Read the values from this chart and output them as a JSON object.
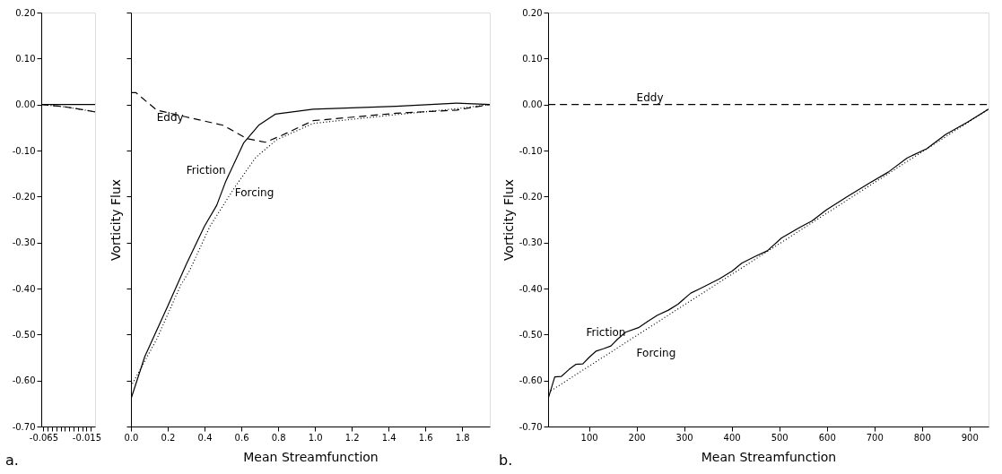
{
  "chart_data": [
    {
      "type": "line",
      "xlim": [
        -0.0675,
        -0.005
      ],
      "ylim": [
        -0.7,
        0.2
      ],
      "xticks": [
        {
          "value": -0.065,
          "label": "-0.065"
        },
        {
          "value": -0.06,
          "label": null
        },
        {
          "value": -0.055,
          "label": null
        },
        {
          "value": -0.05,
          "label": null
        },
        {
          "value": -0.045,
          "label": null
        },
        {
          "value": -0.04,
          "label": null
        },
        {
          "value": -0.035,
          "label": null
        },
        {
          "value": -0.03,
          "label": null
        },
        {
          "value": -0.025,
          "label": null
        },
        {
          "value": -0.02,
          "label": null
        },
        {
          "value": -0.015,
          "label": "-0.015"
        },
        {
          "value": -0.01,
          "label": null
        }
      ],
      "yticks": [
        {
          "value": 0.2,
          "label": "0.20"
        },
        {
          "value": 0.1,
          "label": "0.10"
        },
        {
          "value": 0,
          "label": "0.00"
        },
        {
          "value": -0.1,
          "label": "-0.10"
        },
        {
          "value": -0.2,
          "label": "-0.20"
        },
        {
          "value": -0.3,
          "label": "-0.30"
        },
        {
          "value": -0.4,
          "label": "-0.40"
        },
        {
          "value": -0.5,
          "label": "-0.50"
        },
        {
          "value": -0.6,
          "label": "-0.60"
        },
        {
          "value": -0.7,
          "label": "-0.70"
        }
      ],
      "grid": false,
      "annotations": [
        "a."
      ],
      "series": [
        {
          "color": "#000000",
          "line_style": "solid",
          "x": [
            -0.0675,
            -0.005
          ],
          "values": [
            0,
            0
          ]
        },
        {
          "color": "#000000",
          "line_style": "dotted",
          "x": [
            -0.0675,
            -0.04,
            -0.02,
            -0.005
          ],
          "values": [
            0,
            -0.005,
            -0.011,
            -0.016
          ]
        },
        {
          "color": "#000000",
          "line_style": "dashed",
          "x": [
            -0.0675,
            -0.04,
            -0.02,
            -0.005
          ],
          "values": [
            0,
            -0.005,
            -0.011,
            -0.016
          ]
        }
      ]
    },
    {
      "type": "line",
      "xlim": [
        0,
        1.95
      ],
      "ylim": [
        -0.7,
        0.2
      ],
      "ylabel": "Vorticity Flux",
      "xlabel": "Mean Streamfunction",
      "tick_labels": "x",
      "xticks": [
        {
          "value": 0,
          "label": "0.0"
        },
        {
          "value": 0.2,
          "label": "0.2"
        },
        {
          "value": 0.4,
          "label": "0.4"
        },
        {
          "value": 0.6,
          "label": "0.6"
        },
        {
          "value": 0.8,
          "label": "0.8"
        },
        {
          "value": 1,
          "label": "1.0"
        },
        {
          "value": 1.2,
          "label": "1.2"
        },
        {
          "value": 1.4,
          "label": "1.4"
        },
        {
          "value": 1.6,
          "label": "1.6"
        },
        {
          "value": 1.8,
          "label": "1.8"
        }
      ],
      "yticks": [
        0.2,
        0.1,
        0,
        -0.1,
        -0.2,
        -0.3,
        -0.4,
        -0.5,
        -0.6,
        -0.7
      ],
      "grid": false,
      "annotations": [
        {
          "text": "Eddy",
          "x": 0.14,
          "y": -0.012
        },
        {
          "text": "Friction",
          "x": 0.515,
          "y": -0.167
        },
        {
          "text": "Forcing",
          "x": 0.564,
          "y": -0.18
        }
      ],
      "series": [
        {
          "color": "#000000",
          "line_style": "solid",
          "x": [
            0,
            0.075,
            0.2,
            0.3,
            0.4,
            0.466,
            0.515,
            0.613,
            0.694,
            0.784,
            0.99,
            1.44,
            1.77,
            1.95
          ],
          "values": [
            -0.64,
            -0.548,
            -0.438,
            -0.348,
            -0.264,
            -0.219,
            -0.167,
            -0.083,
            -0.045,
            -0.021,
            -0.01,
            -0.004,
            0.003,
            0
          ]
        },
        {
          "color": "#000000",
          "line_style": "dotted",
          "x": [
            0,
            0.14,
            0.27,
            0.32,
            0.43,
            0.564,
            0.678,
            0.79,
            0.99,
            1.44,
            1.77,
            1.95
          ],
          "values": [
            -0.613,
            -0.51,
            -0.393,
            -0.36,
            -0.264,
            -0.18,
            -0.115,
            -0.077,
            -0.041,
            -0.022,
            -0.009,
            0
          ]
        },
        {
          "color": "#000000",
          "line_style": "dashed",
          "x": [
            0,
            0.026,
            0.14,
            0.3,
            0.5,
            0.63,
            0.73,
            0.82,
            0.99,
            1.44,
            1.77,
            1.95
          ],
          "values": [
            0.026,
            0.026,
            -0.012,
            -0.027,
            -0.045,
            -0.074,
            -0.082,
            -0.067,
            -0.035,
            -0.019,
            -0.012,
            0
          ]
        }
      ]
    },
    {
      "type": "line",
      "xlim": [
        14,
        940
      ],
      "ylim": [
        -0.7,
        0.2
      ],
      "ylabel": "Vorticity Flux",
      "xlabel": "Mean Streamfunction",
      "xticks": [
        100,
        200,
        300,
        400,
        500,
        600,
        700,
        800,
        900
      ],
      "yticks": [
        {
          "value": 0.2,
          "label": "0.20"
        },
        {
          "value": 0.1,
          "label": "0.10"
        },
        {
          "value": 0,
          "label": "0.00"
        },
        {
          "value": -0.1,
          "label": "-0.10"
        },
        {
          "value": -0.2,
          "label": "-0.20"
        },
        {
          "value": -0.3,
          "label": "-0.30"
        },
        {
          "value": -0.4,
          "label": "-0.40"
        },
        {
          "value": -0.5,
          "label": "-0.50"
        },
        {
          "value": -0.6,
          "label": "-0.60"
        },
        {
          "value": -0.7,
          "label": "-0.70"
        }
      ],
      "grid": false,
      "annotations": [
        "b.",
        {
          "text": "Eddy",
          "x": 200,
          "y": 0
        },
        {
          "text": "Friction",
          "x": 177,
          "y": -0.495
        },
        {
          "text": "Forcing",
          "x": 200,
          "y": -0.502
        }
      ],
      "series": [
        {
          "color": "#000000",
          "line_style": "solid",
          "x": [
            14.3,
            28,
            42,
            58,
            72,
            87,
            100,
            115,
            130,
            146,
            160,
            177,
            204,
            224,
            244,
            267,
            287,
            314,
            334,
            374,
            401,
            421,
            448,
            475,
            505,
            545,
            569,
            599,
            642,
            689,
            729,
            769,
            810,
            850,
            896,
            940
          ],
          "values": [
            -0.639,
            -0.592,
            -0.591,
            -0.576,
            -0.565,
            -0.564,
            -0.55,
            -0.536,
            -0.531,
            -0.525,
            -0.51,
            -0.495,
            -0.485,
            -0.471,
            -0.458,
            -0.447,
            -0.434,
            -0.41,
            -0.4,
            -0.379,
            -0.362,
            -0.345,
            -0.331,
            -0.318,
            -0.29,
            -0.266,
            -0.253,
            -0.229,
            -0.201,
            -0.171,
            -0.147,
            -0.116,
            -0.096,
            -0.065,
            -0.038,
            -0.01
          ]
        },
        {
          "color": "#000000",
          "line_style": "dotted",
          "x": [
            14.3,
            435,
            940
          ],
          "values": [
            -0.626,
            -0.346,
            -0.01
          ]
        },
        {
          "color": "#000000",
          "line_style": "dashed",
          "x": [
            14.3,
            940
          ],
          "values": [
            0,
            0
          ]
        }
      ]
    }
  ]
}
